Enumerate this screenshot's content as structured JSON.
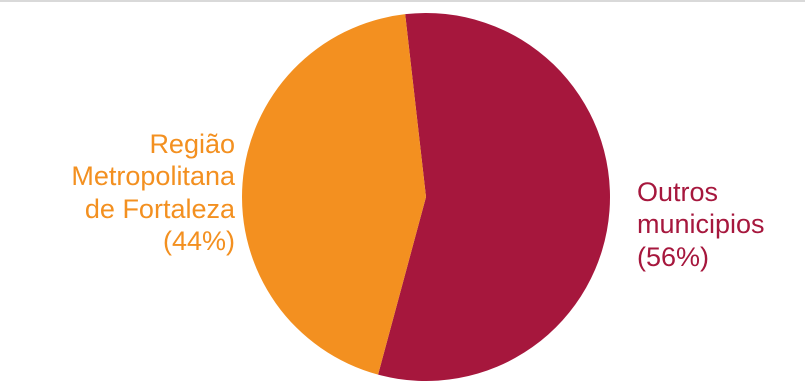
{
  "chart_data": {
    "type": "pie",
    "slices": [
      {
        "label_lines": [
          "Região",
          "Metropolitana",
          "de Fortaleza",
          "(44%)"
        ],
        "value": 44,
        "color": "#F39020"
      },
      {
        "label_lines": [
          "Outros",
          "municipios",
          "(56%)"
        ],
        "value": 56,
        "color": "#A6173D"
      }
    ],
    "legend": "none",
    "start_angle_deg": -6.5
  }
}
